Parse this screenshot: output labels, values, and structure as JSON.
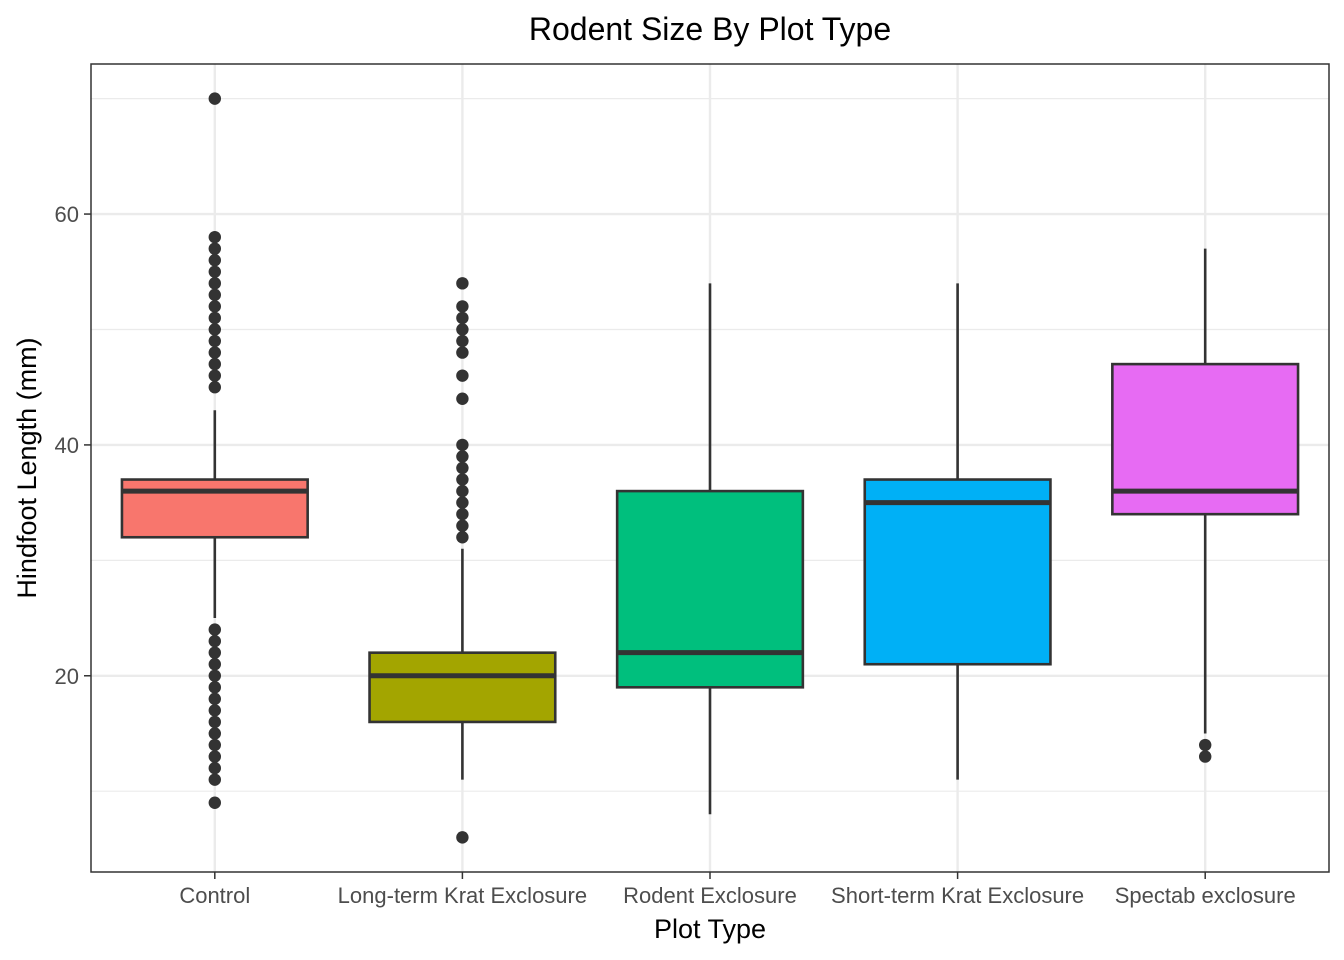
{
  "chart_data": {
    "type": "boxplot",
    "title": "Rodent Size By Plot Type",
    "xlabel": "Plot Type",
    "ylabel": "Hindfoot Length (mm)",
    "ylim": [
      3,
      73
    ],
    "yticks": [
      20,
      40,
      60
    ],
    "grid": true,
    "legend": "none",
    "categories": [
      "Control",
      "Long-term Krat Exclosure",
      "Rodent Exclosure",
      "Short-term Krat Exclosure",
      "Spectab exclosure"
    ],
    "boxes": [
      {
        "category": "Control",
        "color": "#F8766D",
        "q1": 32,
        "median": 36,
        "q3": 37,
        "whisker_low": 25,
        "whisker_high": 43,
        "outliers": [
          9,
          11,
          12,
          13,
          14,
          15,
          16,
          17,
          18,
          19,
          20,
          21,
          22,
          23,
          24,
          45,
          46,
          47,
          48,
          49,
          50,
          51,
          52,
          53,
          54,
          55,
          56,
          57,
          58,
          70
        ]
      },
      {
        "category": "Long-term Krat Exclosure",
        "color": "#A3A500",
        "q1": 16,
        "median": 20,
        "q3": 22,
        "whisker_low": 11,
        "whisker_high": 31,
        "outliers": [
          6,
          32,
          33,
          34,
          35,
          36,
          37,
          38,
          39,
          40,
          44,
          46,
          48,
          49,
          50,
          51,
          52,
          54
        ]
      },
      {
        "category": "Rodent Exclosure",
        "color": "#00BF7D",
        "q1": 19,
        "median": 22,
        "q3": 36,
        "whisker_low": 8,
        "whisker_high": 54,
        "outliers": []
      },
      {
        "category": "Short-term Krat Exclosure",
        "color": "#00B0F6",
        "q1": 21,
        "median": 35,
        "q3": 37,
        "whisker_low": 11,
        "whisker_high": 54,
        "outliers": []
      },
      {
        "category": "Spectab exclosure",
        "color": "#E76BF3",
        "q1": 34,
        "median": 36,
        "q3": 47,
        "whisker_low": 15,
        "whisker_high": 57,
        "outliers": [
          13,
          14
        ]
      }
    ]
  }
}
